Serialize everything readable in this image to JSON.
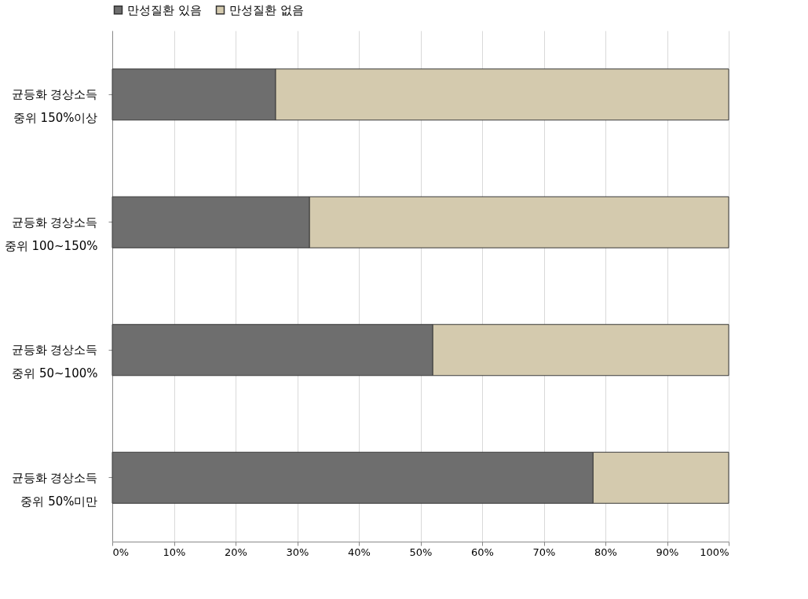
{
  "chart_data": {
    "type": "bar",
    "orientation": "horizontal",
    "stacked": true,
    "categories": [
      "균등화 경상소득\n중위 150%이상",
      "균등화 경상소득\n중위 100~150%",
      "균등화 경상소득\n중위 50~100%",
      "균등화 경상소득\n중위 50%미만"
    ],
    "series": [
      {
        "name": "만성질환  있음",
        "color": "#6e6e6e",
        "values": [
          26.5,
          32,
          52,
          78
        ]
      },
      {
        "name": "만성질환 없음",
        "color": "#d4caae",
        "values": [
          73.5,
          68,
          48,
          22
        ]
      }
    ],
    "xlim": [
      0,
      100
    ],
    "xticks": [
      {
        "value": 0,
        "label": "0%"
      },
      {
        "value": 10,
        "label": "10%"
      },
      {
        "value": 20,
        "label": "20%"
      },
      {
        "value": 30,
        "label": "30%"
      },
      {
        "value": 40,
        "label": "40%"
      },
      {
        "value": 50,
        "label": "50%"
      },
      {
        "value": 60,
        "label": "60%"
      },
      {
        "value": 70,
        "label": "70%"
      },
      {
        "value": 80,
        "label": "80%"
      },
      {
        "value": 90,
        "label": "90%"
      },
      {
        "value": 100,
        "label": "100%"
      }
    ],
    "grid": "x",
    "legend": "top"
  }
}
